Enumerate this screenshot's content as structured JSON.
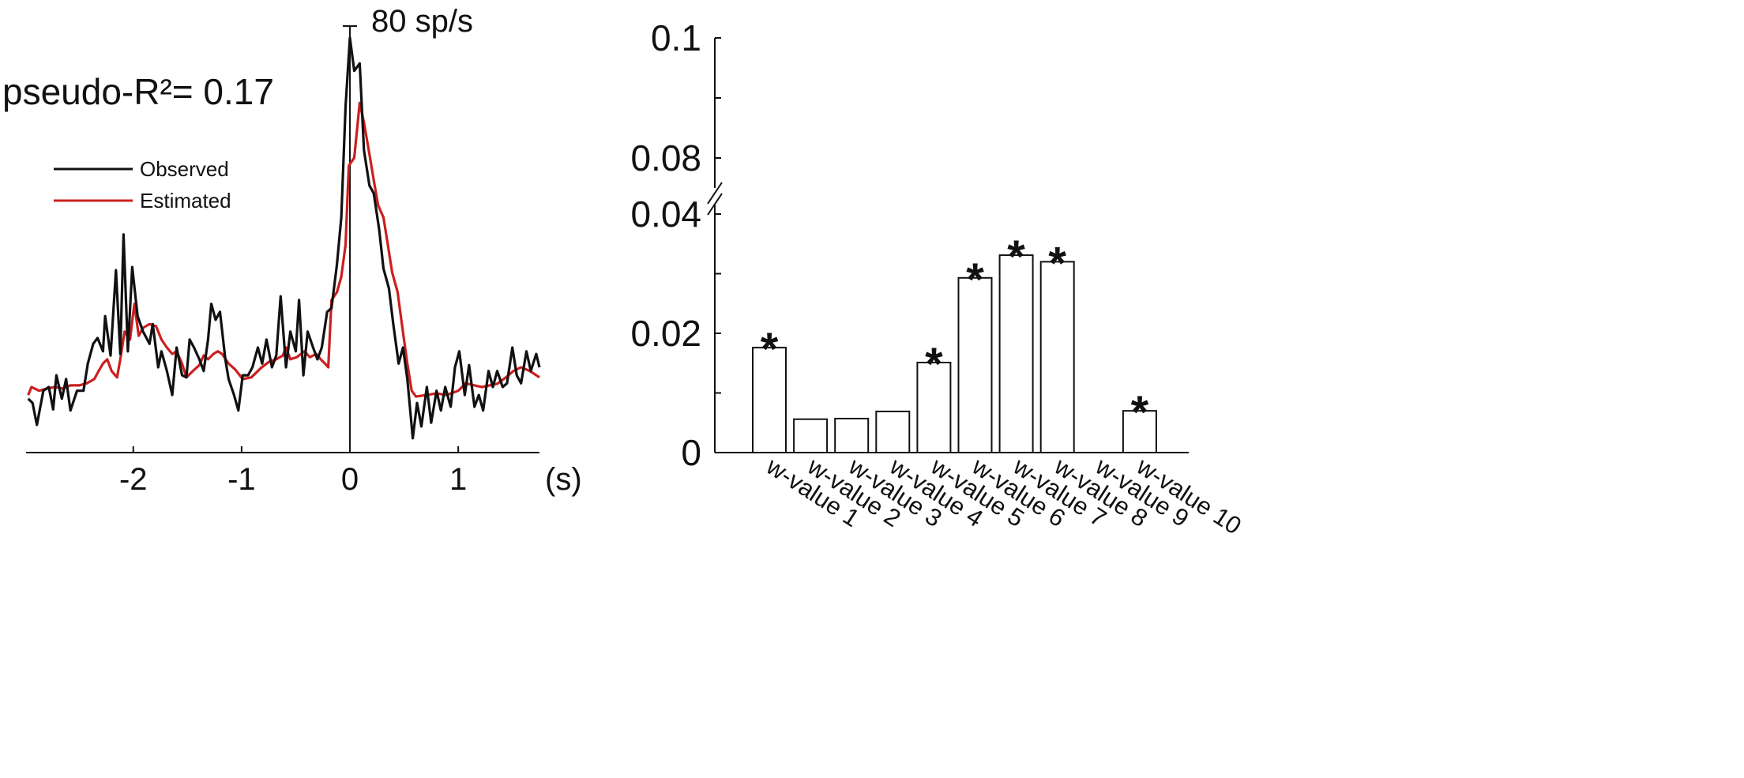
{
  "chart_data": [
    {
      "type": "line",
      "annotation": "pseudo-R²= 0.17",
      "scale_bar_label": "80 sp/s",
      "scale_bar_value": 80,
      "xlabel": "(s)",
      "xlim": [
        -2.99,
        1.75
      ],
      "ylim": [
        0,
        80
      ],
      "xticks": [
        -2,
        -1,
        0,
        1
      ],
      "xtick_labels": [
        "-2",
        "-1",
        "0",
        "1"
      ],
      "grid": false,
      "legend_position": "upper-left",
      "series": [
        {
          "name": "Observed",
          "color": "#111111",
          "x": [
            -2.97,
            -2.93,
            -2.89,
            -2.83,
            -2.78,
            -2.74,
            -2.71,
            -2.66,
            -2.62,
            -2.58,
            -2.52,
            -2.46,
            -2.42,
            -2.37,
            -2.33,
            -2.28,
            -2.26,
            -2.21,
            -2.16,
            -2.12,
            -2.09,
            -2.05,
            -2.01,
            -1.96,
            -1.91,
            -1.85,
            -1.82,
            -1.77,
            -1.74,
            -1.69,
            -1.64,
            -1.6,
            -1.55,
            -1.51,
            -1.48,
            -1.44,
            -1.39,
            -1.35,
            -1.31,
            -1.28,
            -1.24,
            -1.2,
            -1.15,
            -1.12,
            -1.07,
            -1.03,
            -0.99,
            -0.94,
            -0.9,
            -0.85,
            -0.81,
            -0.77,
            -0.72,
            -0.68,
            -0.64,
            -0.59,
            -0.55,
            -0.5,
            -0.47,
            -0.43,
            -0.39,
            -0.34,
            -0.3,
            -0.26,
            -0.21,
            -0.17,
            -0.12,
            -0.08,
            -0.04,
            0,
            0.04,
            0.09,
            0.13,
            0.18,
            0.22,
            0.27,
            0.31,
            0.36,
            0.4,
            0.45,
            0.49,
            0.53,
            0.58,
            0.62,
            0.66,
            0.71,
            0.75,
            0.8,
            0.84,
            0.88,
            0.93,
            0.97,
            1.01,
            1.06,
            1.1,
            1.15,
            1.19,
            1.23,
            1.28,
            1.32,
            1.36,
            1.41,
            1.45,
            1.5,
            1.54,
            1.58,
            1.63,
            1.67,
            1.72,
            1.75
          ],
          "y": [
            10.1,
            9.3,
            5.2,
            11.6,
            12.3,
            8.1,
            14.5,
            10.1,
            13.8,
            7.9,
            11.6,
            11.6,
            16.7,
            20.4,
            21.5,
            19.0,
            25.6,
            18.2,
            34.2,
            18.5,
            40.9,
            19.0,
            34.8,
            25.6,
            22.7,
            20.4,
            24.1,
            16.0,
            19.0,
            15.3,
            10.8,
            19.7,
            14.5,
            14.1,
            21.2,
            19.7,
            17.5,
            15.3,
            21.2,
            27.9,
            24.9,
            26.4,
            17.5,
            13.8,
            10.8,
            7.9,
            14.5,
            14.5,
            16.0,
            19.7,
            16.7,
            21.2,
            16.0,
            18.2,
            29.3,
            16.0,
            22.7,
            19.0,
            28.6,
            14.5,
            22.7,
            19.7,
            17.5,
            19.7,
            26.4,
            27.1,
            35.3,
            44.1,
            64.9,
            77.8,
            71.6,
            73.0,
            56.7,
            50.1,
            48.6,
            41.9,
            34.5,
            30.8,
            24.1,
            16.7,
            19.7,
            13.8,
            2.7,
            9.3,
            4.9,
            12.3,
            5.6,
            11.6,
            7.9,
            12.3,
            8.6,
            16.0,
            19.0,
            10.8,
            16.4,
            8.6,
            10.8,
            7.9,
            15.3,
            12.3,
            15.3,
            12.3,
            13.0,
            19.7,
            14.5,
            13.0,
            19.0,
            15.3,
            18.5,
            16.0
          ]
        },
        {
          "name": "Estimated",
          "color": "#cc1f1f",
          "x": [
            -2.97,
            -2.94,
            -2.87,
            -2.8,
            -2.72,
            -2.65,
            -2.58,
            -2.5,
            -2.43,
            -2.36,
            -2.32,
            -2.28,
            -2.24,
            -2.2,
            -2.15,
            -2.12,
            -2.08,
            -2.03,
            -1.99,
            -1.95,
            -1.91,
            -1.85,
            -1.79,
            -1.74,
            -1.69,
            -1.64,
            -1.6,
            -1.55,
            -1.51,
            -1.45,
            -1.39,
            -1.35,
            -1.31,
            -1.26,
            -1.22,
            -1.18,
            -1.12,
            -1.06,
            -0.99,
            -0.91,
            -0.82,
            -0.75,
            -0.68,
            -0.62,
            -0.59,
            -0.55,
            -0.49,
            -0.42,
            -0.37,
            -0.31,
            -0.27,
            -0.23,
            -0.2,
            -0.17,
            -0.12,
            -0.08,
            -0.04,
            -0.01,
            0.04,
            0.09,
            0.13,
            0.18,
            0.22,
            0.26,
            0.31,
            0.35,
            0.39,
            0.44,
            0.48,
            0.53,
            0.57,
            0.61,
            0.71,
            0.8,
            0.89,
            1.0,
            1.07,
            1.15,
            1.22,
            1.29,
            1.36,
            1.44,
            1.51,
            1.58,
            1.66,
            1.75
          ],
          "y": [
            10.8,
            12.3,
            11.6,
            12.0,
            12.3,
            12.0,
            12.6,
            12.6,
            13.0,
            13.8,
            15.3,
            16.7,
            17.5,
            15.3,
            14.1,
            17.5,
            22.7,
            21.2,
            27.9,
            21.9,
            23.4,
            24.1,
            23.7,
            21.2,
            19.7,
            18.5,
            19.0,
            16.7,
            14.1,
            15.3,
            16.4,
            18.2,
            17.5,
            18.5,
            19.0,
            18.5,
            16.7,
            15.6,
            13.8,
            14.1,
            15.9,
            17.0,
            17.5,
            18.2,
            19.7,
            17.5,
            17.9,
            19.0,
            17.9,
            18.5,
            17.5,
            16.7,
            16.0,
            28.6,
            30.1,
            33.0,
            39.0,
            53.8,
            55.3,
            65.6,
            61.9,
            56.0,
            51.1,
            46.4,
            44.1,
            39.0,
            33.8,
            30.1,
            24.1,
            16.7,
            11.6,
            10.5,
            10.8,
            11.1,
            10.8,
            11.6,
            13.0,
            12.6,
            12.3,
            12.6,
            12.9,
            14.1,
            15.3,
            16.0,
            15.3,
            14.1
          ]
        }
      ]
    },
    {
      "type": "bar",
      "categories": [
        "w-value 1",
        "w-value 2",
        "w-value 3",
        "w-value 4",
        "w-value 5",
        "w-value 6",
        "w-value 7",
        "w-value 8",
        "w-value 9",
        "w-value 10"
      ],
      "values": [
        0.0176,
        0.0056,
        0.0057,
        0.0069,
        0.0151,
        0.0293,
        0.0331,
        0.032,
        0,
        0.007
      ],
      "significant": [
        true,
        false,
        false,
        false,
        true,
        true,
        true,
        true,
        false,
        true
      ],
      "significance_marker": "*",
      "ylim": [
        0,
        0.1
      ],
      "y_axis_break": [
        0.045,
        0.075
      ],
      "yticks": [
        0,
        0.01,
        0.02,
        0.03,
        0.04,
        0.08,
        0.09,
        0.1
      ],
      "ytick_labels": {
        "0": "0",
        "0.02": "0.02",
        "0.04": "0.04",
        "0.08": "0.08",
        "0.1": "0.1"
      },
      "bar_fill": "#ffffff",
      "bar_edge": "#111111",
      "grid": false
    }
  ]
}
